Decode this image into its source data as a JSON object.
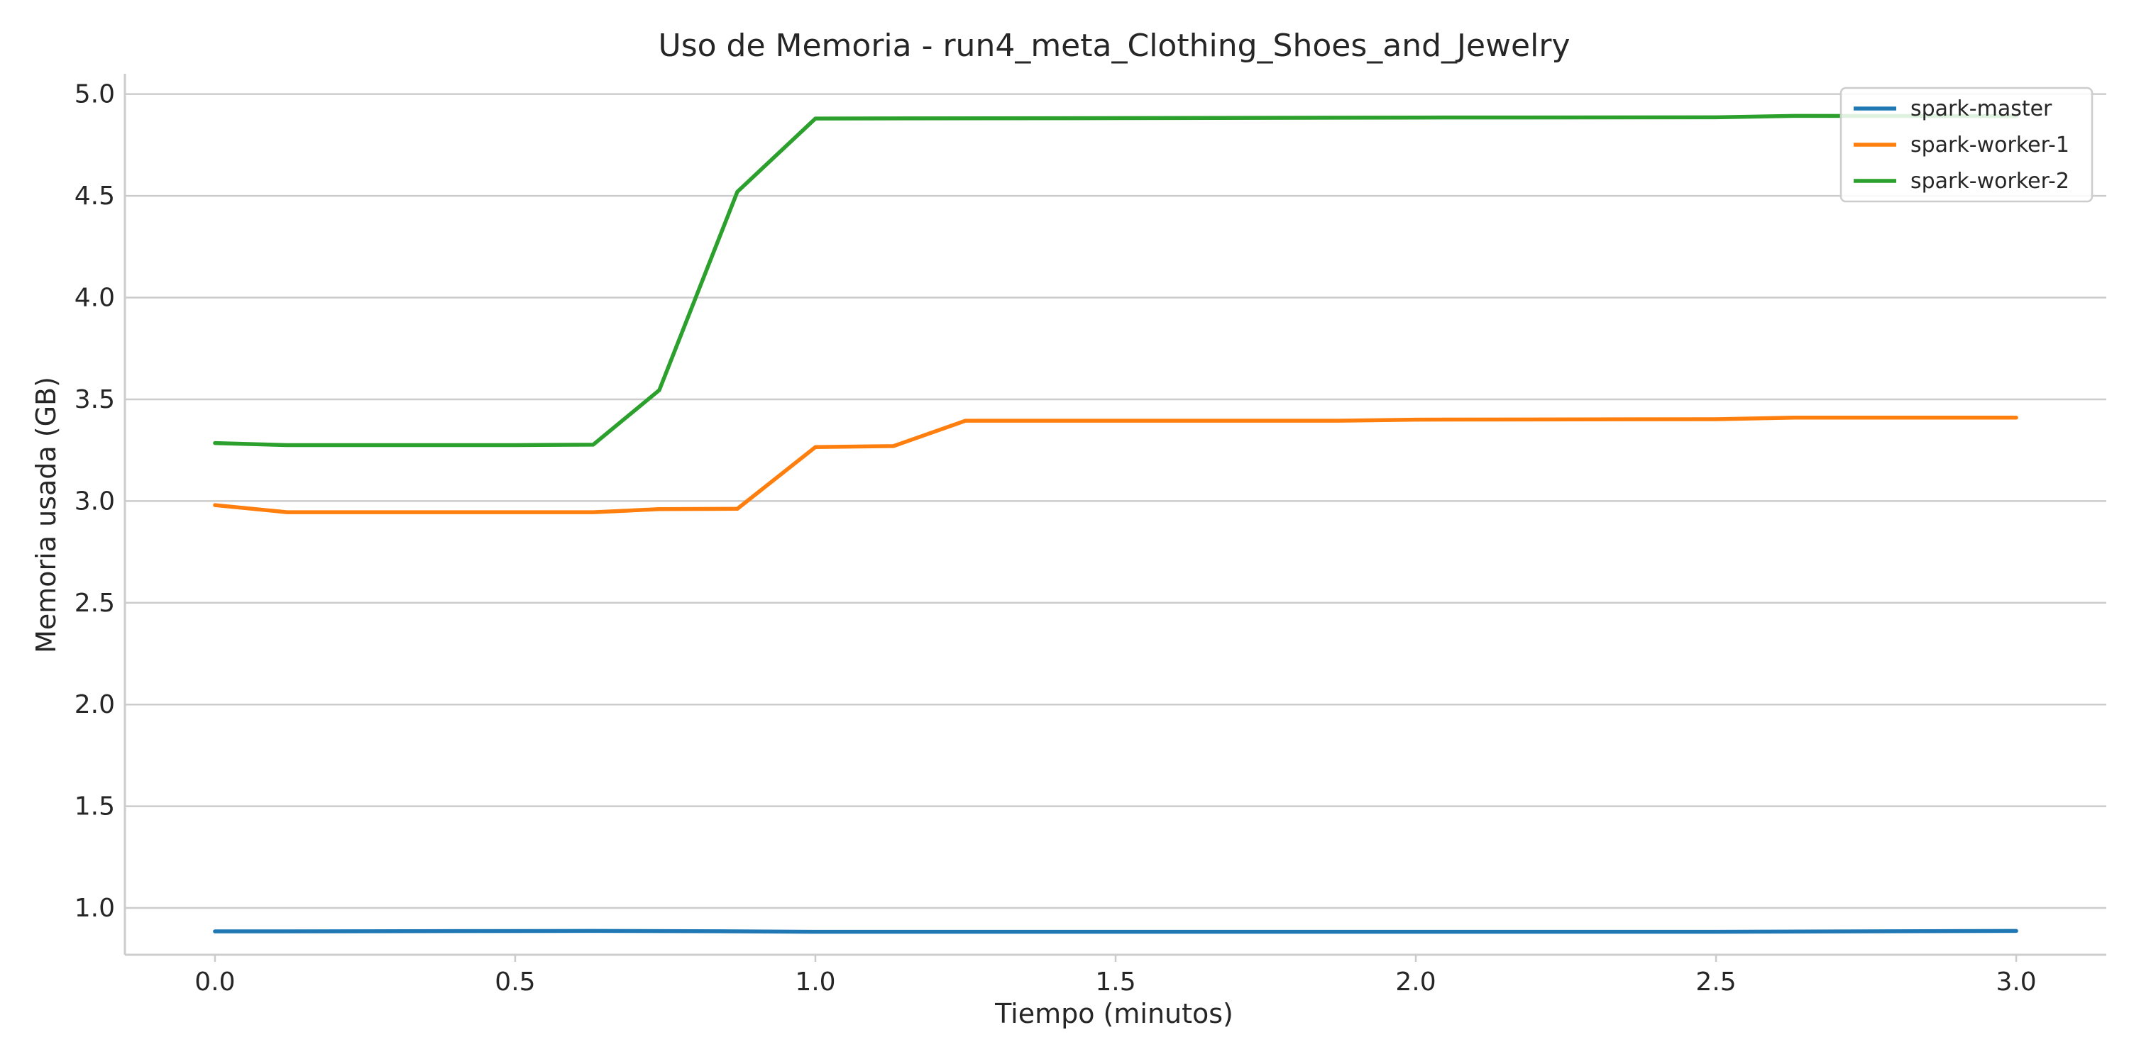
{
  "chart_data": {
    "type": "line",
    "title": "Uso de Memoria - run4_meta_Clothing_Shoes_and_Jewelry",
    "xlabel": "Tiempo (minutos)",
    "ylabel": "Memoria usada (GB)",
    "xlim": [
      -0.15,
      3.15
    ],
    "ylim": [
      0.77,
      5.1
    ],
    "xticks": [
      0.0,
      0.5,
      1.0,
      1.5,
      2.0,
      2.5,
      3.0
    ],
    "xtick_labels": [
      "0.0",
      "0.5",
      "1.0",
      "1.5",
      "2.0",
      "2.5",
      "3.0"
    ],
    "yticks": [
      1.0,
      1.5,
      2.0,
      2.5,
      3.0,
      3.5,
      4.0,
      4.5,
      5.0
    ],
    "ytick_labels": [
      "1.0",
      "1.5",
      "2.0",
      "2.5",
      "3.0",
      "3.5",
      "4.0",
      "4.5",
      "5.0"
    ],
    "grid": "horizontal",
    "legend_position": "top-right",
    "series": [
      {
        "name": "spark-master",
        "color": "#1f77b4",
        "x": [
          0.0,
          0.12,
          0.63,
          0.87,
          1.0,
          1.5,
          2.0,
          2.5,
          3.0
        ],
        "y": [
          0.885,
          0.885,
          0.887,
          0.885,
          0.883,
          0.883,
          0.883,
          0.883,
          0.887
        ]
      },
      {
        "name": "spark-worker-1",
        "color": "#ff7f0e",
        "x": [
          0.0,
          0.12,
          0.63,
          0.74,
          0.87,
          1.0,
          1.13,
          1.25,
          1.5,
          1.87,
          2.0,
          2.5,
          2.63,
          3.0
        ],
        "y": [
          2.98,
          2.945,
          2.945,
          2.96,
          2.962,
          3.265,
          3.27,
          3.395,
          3.395,
          3.395,
          3.4,
          3.402,
          3.41,
          3.41
        ]
      },
      {
        "name": "spark-worker-2",
        "color": "#2ca02c",
        "x": [
          0.0,
          0.12,
          0.5,
          0.63,
          0.74,
          0.87,
          1.0,
          1.5,
          2.0,
          2.5,
          2.63,
          3.0
        ],
        "y": [
          3.285,
          3.275,
          3.275,
          3.277,
          3.545,
          4.52,
          4.88,
          4.882,
          4.885,
          4.886,
          4.893,
          4.892
        ]
      }
    ]
  }
}
